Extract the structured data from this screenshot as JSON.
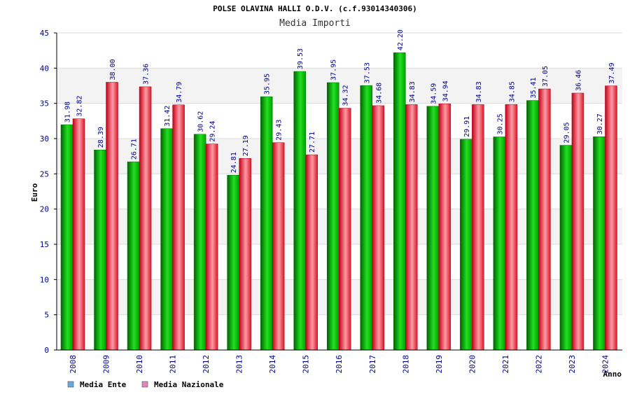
{
  "chart_data": {
    "type": "bar",
    "title": "POLSE OLAVINA HALLI O.D.V. (c.f.93014340306)",
    "subtitle": "Media Importi",
    "xlabel": "Anno",
    "ylabel": "Euro",
    "ylim": [
      0,
      45
    ],
    "yticks": [
      "0",
      "5",
      "10",
      "15",
      "20",
      "25",
      "30",
      "35",
      "40",
      "45"
    ],
    "categories": [
      "2008",
      "2009",
      "2010",
      "2011",
      "2012",
      "2013",
      "2014",
      "2015",
      "2016",
      "2017",
      "2018",
      "2019",
      "2020",
      "2021",
      "2022",
      "2023",
      "2024"
    ],
    "series": [
      {
        "name": "Media Ente",
        "color": "#00b400",
        "legend_color": "#66aadd",
        "values": [
          31.98,
          28.39,
          26.71,
          31.42,
          30.62,
          24.81,
          35.95,
          39.53,
          37.95,
          37.53,
          42.2,
          34.59,
          29.91,
          30.25,
          35.41,
          29.05,
          30.27
        ],
        "labels": [
          "31.98",
          "28.39",
          "26.71",
          "31.42",
          "30.62",
          "24.81",
          "35.95",
          "39.53",
          "37.95",
          "37.53",
          "42.20",
          "34.59",
          "29.91",
          "30.25",
          "35.41",
          "29.05",
          "30.27"
        ]
      },
      {
        "name": "Media Nazionale",
        "color": "#e02030",
        "legend_color": "#dd88bb",
        "values": [
          32.82,
          38.0,
          37.36,
          34.79,
          29.24,
          27.19,
          29.43,
          27.71,
          34.32,
          34.68,
          34.83,
          34.94,
          34.83,
          34.85,
          37.05,
          36.46,
          37.49
        ],
        "labels": [
          "32.82",
          "38.00",
          "37.36",
          "34.79",
          "29.24",
          "27.19",
          "29.43",
          "27.71",
          "34.32",
          "34.68",
          "34.83",
          "34.94",
          "34.83",
          "34.85",
          "37.05",
          "36.46",
          "37.49"
        ]
      }
    ],
    "legend_position": "bottom-left",
    "grid": true
  }
}
